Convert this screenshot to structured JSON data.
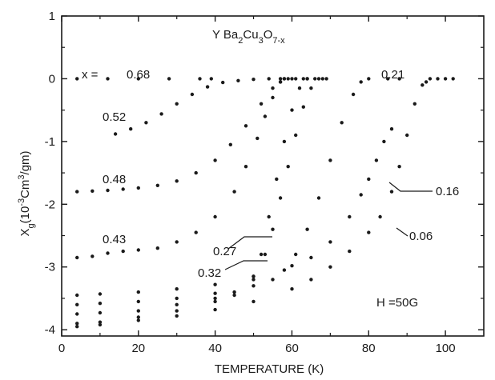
{
  "chart_data": {
    "type": "scatter",
    "title": "Y Ba2Cu3O7-x",
    "title_parts": {
      "base": "Y Ba",
      "s1": "2",
      "mid": "Cu",
      "s2": "3",
      "o": "O",
      "s3": "7-x"
    },
    "xlabel": "TEMPERATURE (K)",
    "ylabel": "Xg(10-3Cm3/gm)",
    "ylabel_parts": {
      "chi": "X",
      "g": "g",
      "open": "(10",
      "exp": "-3",
      "cm": "Cm",
      "three": "3",
      "close": "/gm)"
    },
    "xlim": [
      0,
      110
    ],
    "ylim": [
      -4.1,
      1
    ],
    "xticks": [
      "0",
      "20",
      "40",
      "60",
      "80",
      "100"
    ],
    "yticks": [
      "1",
      "0",
      "-1",
      "-2",
      "-3",
      "-4"
    ],
    "grid": false,
    "legend": "none",
    "marker_color": "#1a1a1a",
    "annotations": {
      "x_prefix": "x  =",
      "field": "H =50G"
    },
    "series": [
      {
        "name": "0.68",
        "x": [
          4,
          12,
          20,
          28,
          36,
          39
        ],
        "y": [
          0,
          0,
          0,
          0,
          0,
          0
        ]
      },
      {
        "name": "0.52",
        "x": [
          14,
          18,
          22,
          26,
          30,
          34,
          38,
          42,
          46,
          50,
          54,
          57,
          59,
          61,
          63
        ],
        "y": [
          -0.88,
          -0.8,
          -0.7,
          -0.56,
          -0.4,
          -0.25,
          -0.13,
          -0.06,
          -0.03,
          -0.01,
          0,
          0,
          0,
          0,
          0
        ]
      },
      {
        "name": "0.48",
        "x": [
          4,
          8,
          12,
          16,
          20,
          25,
          30,
          35,
          40,
          44,
          48,
          52,
          55,
          57,
          58,
          60,
          64,
          68
        ],
        "y": [
          -1.8,
          -1.79,
          -1.78,
          -1.76,
          -1.74,
          -1.7,
          -1.63,
          -1.5,
          -1.3,
          -1.05,
          -0.75,
          -0.4,
          -0.15,
          -0.05,
          0,
          0,
          0,
          0
        ]
      },
      {
        "name": "0.43",
        "x": [
          4,
          8,
          12,
          16,
          20,
          25,
          30,
          35,
          40,
          45,
          48,
          51,
          53,
          55,
          57,
          58
        ],
        "y": [
          -2.85,
          -2.83,
          -2.78,
          -2.75,
          -2.73,
          -2.7,
          -2.6,
          -2.45,
          -2.2,
          -1.8,
          -1.4,
          -0.95,
          -0.6,
          -0.3,
          -0.05,
          0
        ]
      },
      {
        "name": "0.32",
        "x": [
          4,
          10,
          20,
          30,
          40,
          45,
          50,
          52,
          54,
          56,
          58,
          60,
          62,
          64,
          66
        ],
        "y": [
          -3.9,
          -3.88,
          -3.8,
          -3.7,
          -3.55,
          -3.45,
          -3.2,
          -2.8,
          -2.2,
          -1.6,
          -1.0,
          -0.5,
          -0.15,
          0,
          0
        ]
      },
      {
        "name": "0.27",
        "x": [
          4,
          10,
          20,
          30,
          40,
          45,
          50,
          53,
          55,
          57,
          59,
          61,
          63,
          65,
          67,
          69
        ],
        "y": [
          -3.75,
          -3.73,
          -3.7,
          -3.6,
          -3.5,
          -3.4,
          -3.15,
          -2.8,
          -2.4,
          -1.9,
          -1.4,
          -0.9,
          -0.45,
          -0.15,
          0,
          0
        ]
      },
      {
        "name": "0.21",
        "x": [
          4,
          10,
          20,
          30,
          40,
          50,
          55,
          58,
          61,
          64,
          67,
          70,
          73,
          76,
          78,
          80,
          85,
          88
        ],
        "y": [
          -3.6,
          -3.58,
          -3.55,
          -3.5,
          -3.42,
          -3.3,
          -3.2,
          -3.05,
          -2.8,
          -2.4,
          -1.9,
          -1.3,
          -0.7,
          -0.25,
          -0.05,
          0,
          0,
          0
        ]
      },
      {
        "name": "0.16",
        "x": [
          4,
          10,
          20,
          30,
          40,
          50,
          60,
          65,
          70,
          75,
          78,
          80,
          82,
          84,
          86
        ],
        "y": [
          -3.45,
          -3.43,
          -3.4,
          -3.35,
          -3.28,
          -3.15,
          -2.98,
          -2.85,
          -2.6,
          -2.2,
          -1.85,
          -1.6,
          -1.3,
          -1.0,
          -0.8
        ]
      },
      {
        "name": "0.06",
        "x": [
          4,
          10,
          20,
          30,
          40,
          50,
          60,
          65,
          70,
          75,
          80,
          83,
          86,
          88,
          90,
          92,
          94,
          95,
          96,
          98,
          100,
          102
        ],
        "y": [
          -3.95,
          -3.92,
          -3.85,
          -3.78,
          -3.68,
          -3.55,
          -3.35,
          -3.2,
          -3.0,
          -2.75,
          -2.45,
          -2.2,
          -1.8,
          -1.4,
          -0.9,
          -0.4,
          -0.1,
          -0.05,
          0,
          0,
          0,
          0
        ]
      }
    ]
  }
}
